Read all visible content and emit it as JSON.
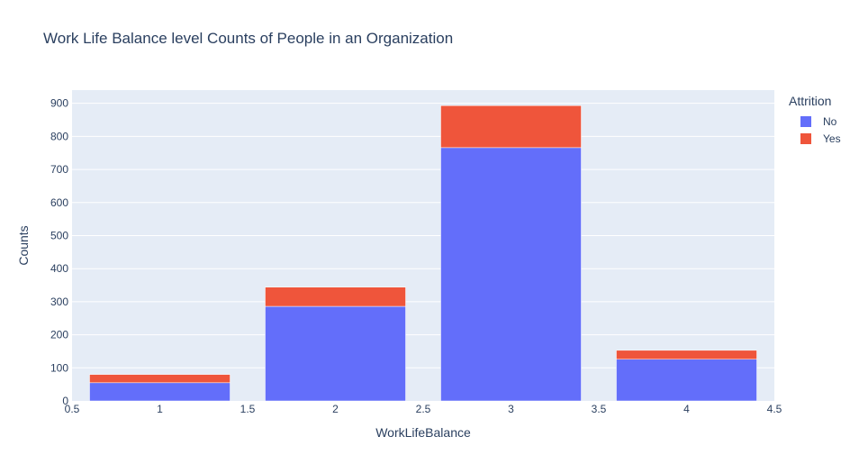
{
  "chart_data": {
    "type": "bar",
    "barmode": "stack",
    "title": "Work Life Balance level Counts of People in an Organization",
    "xlabel": "WorkLifeBalance",
    "ylabel": "Counts",
    "x": [
      1,
      2,
      3,
      4
    ],
    "series": [
      {
        "name": "No",
        "color": "#636efa",
        "values": [
          55,
          286,
          766,
          126
        ]
      },
      {
        "name": "Yes",
        "color": "#ef553b",
        "values": [
          25,
          58,
          127,
          27
        ]
      }
    ],
    "xlim": [
      0.5,
      4.5
    ],
    "ylim": [
      0,
      940
    ],
    "xticks": [
      "0.5",
      "1",
      "1.5",
      "2",
      "2.5",
      "3",
      "3.5",
      "4",
      "4.5"
    ],
    "yticks": [
      "0",
      "100",
      "200",
      "300",
      "400",
      "500",
      "600",
      "700",
      "800",
      "900"
    ],
    "legend": {
      "title": "Attrition",
      "placement": "top-right outside"
    },
    "grid": true,
    "plot_background": "#e5ecf6"
  }
}
